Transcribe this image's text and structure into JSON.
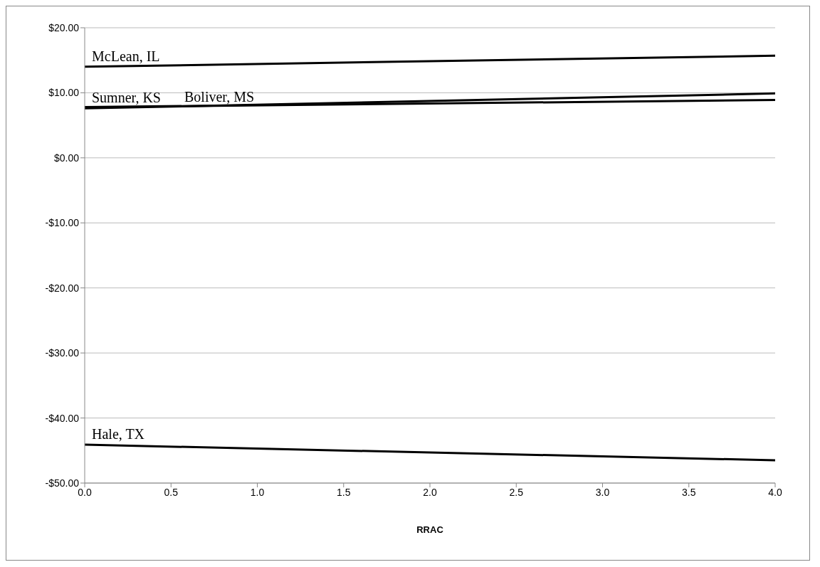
{
  "chart_data": {
    "type": "line",
    "xlabel": "RRAC",
    "x": [
      0,
      4
    ],
    "series": [
      {
        "name": "McLean, IL",
        "color": "#000000",
        "values": [
          14.0,
          15.7
        ]
      },
      {
        "name": "Sumner, KS",
        "color": "#000000",
        "values": [
          7.6,
          9.9
        ]
      },
      {
        "name": "Boliver, MS",
        "color": "#000000",
        "values": [
          7.8,
          8.9
        ]
      },
      {
        "name": "Hale, TX",
        "color": "#000000",
        "values": [
          -44.1,
          -46.5
        ]
      }
    ],
    "xlim": [
      0,
      4
    ],
    "xticks": [
      {
        "value": 0,
        "label": "0.0"
      },
      {
        "value": 0.5,
        "label": "0.5"
      },
      {
        "value": 1,
        "label": "1.0"
      },
      {
        "value": 1.5,
        "label": "1.5"
      },
      {
        "value": 2,
        "label": "2.0"
      },
      {
        "value": 2.5,
        "label": "2.5"
      },
      {
        "value": 3,
        "label": "3.0"
      },
      {
        "value": 3.5,
        "label": "3.5"
      },
      {
        "value": 4,
        "label": "4.0"
      }
    ],
    "ylim": [
      -50,
      20
    ],
    "yticks": [
      {
        "value": -50,
        "label": "-$50.00"
      },
      {
        "value": -40,
        "label": "-$40.00"
      },
      {
        "value": -30,
        "label": "-$30.00"
      },
      {
        "value": -20,
        "label": "-$20.00"
      },
      {
        "value": -10,
        "label": "-$10.00"
      },
      {
        "value": 0,
        "label": "$0.00"
      },
      {
        "value": 10,
        "label": "$10.00"
      },
      {
        "value": 20,
        "label": "$20.00"
      }
    ],
    "grid": "y",
    "legend": false,
    "marker": "none",
    "line_style": "solid"
  }
}
